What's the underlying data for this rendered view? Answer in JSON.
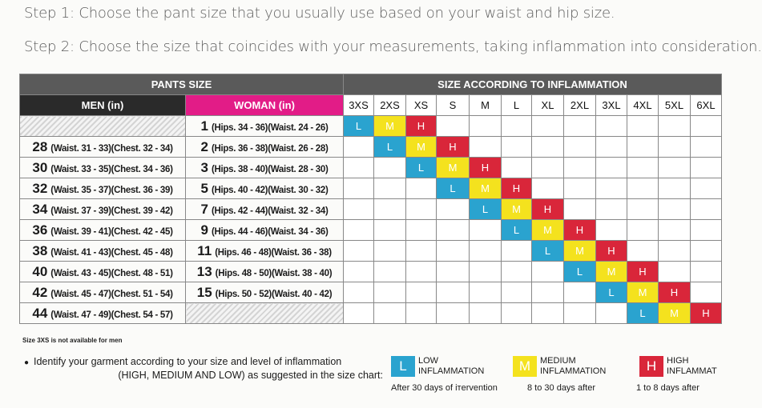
{
  "steps": {
    "step1": "Step 1: Choose the pant size that you usually use based on your waist and hip size.",
    "step2": "Step 2: Choose the size that coincides with your measurements, taking inflammation into consideration."
  },
  "table": {
    "pants_size_title": "PANTS SIZE",
    "inflammation_title": "SIZE ACCORDING TO INFLAMMATION",
    "men_header": "MEN (in)",
    "woman_header": "WOMAN (in)",
    "size_columns": [
      "3XS",
      "2XS",
      "XS",
      "S",
      "M",
      "L",
      "XL",
      "2XL",
      "3XL",
      "4XL",
      "5XL",
      "6XL"
    ],
    "rows": [
      {
        "men_size": "",
        "men_meas": "",
        "woman_size": "1",
        "woman_meas": "(Hips. 34 - 36)(Waist. 24 - 26)",
        "cells": [
          "L",
          "M",
          "H",
          "",
          "",
          "",
          "",
          "",
          "",
          "",
          "",
          ""
        ]
      },
      {
        "men_size": "28",
        "men_meas": "(Waist. 31 - 33)(Chest. 32 - 34)",
        "woman_size": "2",
        "woman_meas": "(Hips. 36 - 38)(Waist. 26 - 28)",
        "cells": [
          "",
          "L",
          "M",
          "H",
          "",
          "",
          "",
          "",
          "",
          "",
          "",
          ""
        ]
      },
      {
        "men_size": "30",
        "men_meas": "(Waist. 33 - 35)(Chest. 34 - 36)",
        "woman_size": "3",
        "woman_meas": "(Hips. 38 - 40)(Waist. 28 - 30)",
        "cells": [
          "",
          "",
          "L",
          "M",
          "H",
          "",
          "",
          "",
          "",
          "",
          "",
          ""
        ]
      },
      {
        "men_size": "32",
        "men_meas": "(Waist. 35 - 37)(Chest. 36 - 39)",
        "woman_size": "5",
        "woman_meas": "(Hips. 40 - 42)(Waist. 30 - 32)",
        "cells": [
          "",
          "",
          "",
          "L",
          "M",
          "H",
          "",
          "",
          "",
          "",
          "",
          ""
        ]
      },
      {
        "men_size": "34",
        "men_meas": "(Waist. 37 - 39)(Chest. 39 - 42)",
        "woman_size": "7",
        "woman_meas": "(Hips. 42 - 44)(Waist. 32 - 34)",
        "cells": [
          "",
          "",
          "",
          "",
          "L",
          "M",
          "H",
          "",
          "",
          "",
          "",
          ""
        ]
      },
      {
        "men_size": "36",
        "men_meas": "(Waist. 39 - 41)(Chest. 42 - 45)",
        "woman_size": "9",
        "woman_meas": "(Hips. 44 - 46)(Waist. 34 - 36)",
        "cells": [
          "",
          "",
          "",
          "",
          "",
          "L",
          "M",
          "H",
          "",
          "",
          "",
          ""
        ]
      },
      {
        "men_size": "38",
        "men_meas": "(Waist. 41 - 43)(Chest. 45 - 48)",
        "woman_size": "11",
        "woman_meas": "(Hips. 46 - 48)(Waist. 36 - 38)",
        "cells": [
          "",
          "",
          "",
          "",
          "",
          "",
          "L",
          "M",
          "H",
          "",
          "",
          ""
        ]
      },
      {
        "men_size": "40",
        "men_meas": "(Waist. 43 - 45)(Chest. 48 - 51)",
        "woman_size": "13",
        "woman_meas": "(Hips. 48 - 50)(Waist. 38 - 40)",
        "cells": [
          "",
          "",
          "",
          "",
          "",
          "",
          "",
          "L",
          "M",
          "H",
          "",
          ""
        ]
      },
      {
        "men_size": "42",
        "men_meas": "(Waist. 45 - 47)(Chest. 51 - 54)",
        "woman_size": "15",
        "woman_meas": "(Hips. 50 - 52)(Waist. 40 - 42)",
        "cells": [
          "",
          "",
          "",
          "",
          "",
          "",
          "",
          "",
          "L",
          "M",
          "H",
          ""
        ]
      },
      {
        "men_size": "44",
        "men_meas": "(Waist. 47 - 49)(Chest. 54 - 57)",
        "woman_size": "",
        "woman_meas": "",
        "cells": [
          "",
          "",
          "",
          "",
          "",
          "",
          "",
          "",
          "",
          "L",
          "M",
          "H"
        ]
      }
    ]
  },
  "note": "Size 3XS is not available for men",
  "identify": {
    "bullet": "●",
    "line1": "Identify your garment according to  your size and  level of inflammation",
    "line2": "(HIGH, MEDIUM AND LOW) as suggested in the size chart:"
  },
  "legend": {
    "low": {
      "letter": "L",
      "line1": "LOW",
      "line2": "INFLAMMATION",
      "sub": "After 30 days of iтervention"
    },
    "medium": {
      "letter": "M",
      "line1": "MEDIUM",
      "line2": "INFLAMMATION",
      "sub": "8 to 30 days after"
    },
    "high": {
      "letter": "H",
      "line1": "HIGH",
      "line2": "INFLAMMAT",
      "sub": "1 to 8 days after"
    }
  },
  "colors": {
    "low": "#2aa3cf",
    "medium": "#f4e21e",
    "high": "#d9263a",
    "woman_header": "#e21c87",
    "men_header": "#2a2a2a",
    "section_header": "#5a5a5a"
  }
}
